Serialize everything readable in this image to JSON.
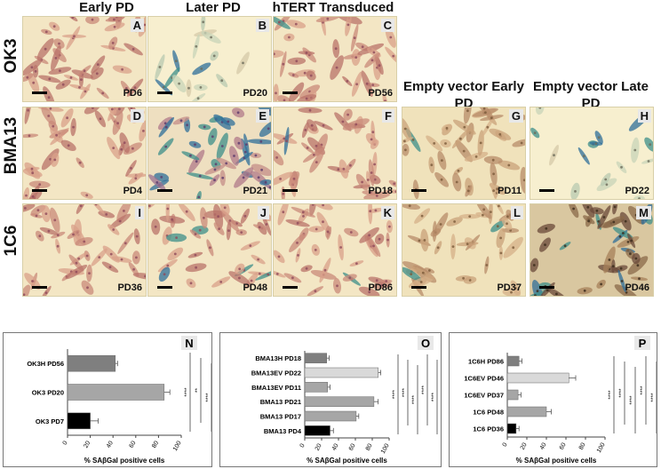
{
  "column_headers": [
    "Early PD",
    "Later PD",
    "hTERT Transduced",
    "Empty vector Early PD",
    "Empty vector Late PD"
  ],
  "row_headers": [
    "OK3",
    "BMA13",
    "1C6"
  ],
  "panels": [
    {
      "letter": "A",
      "pd": "PD6",
      "cells": "pink",
      "blue": 0.05
    },
    {
      "letter": "B",
      "pd": "PD20",
      "cells": "sparse",
      "blue": 0.35
    },
    {
      "letter": "C",
      "pd": "PD56",
      "cells": "pink",
      "blue": 0.05
    },
    {
      "letter": "D",
      "pd": "PD4",
      "cells": "pink",
      "blue": 0.03
    },
    {
      "letter": "E",
      "pd": "PD21",
      "cells": "mixed",
      "blue": 0.45
    },
    {
      "letter": "F",
      "pd": "PD18",
      "cells": "pink",
      "blue": 0.04
    },
    {
      "letter": "G",
      "pd": "PD11",
      "cells": "tan",
      "blue": 0.05
    },
    {
      "letter": "H",
      "pd": "PD22",
      "cells": "sparse",
      "blue": 0.45
    },
    {
      "letter": "I",
      "pd": "PD36",
      "cells": "pink",
      "blue": 0.03
    },
    {
      "letter": "J",
      "pd": "PD48",
      "cells": "pink",
      "blue": 0.06
    },
    {
      "letter": "K",
      "pd": "PD86",
      "cells": "pink",
      "blue": 0.03
    },
    {
      "letter": "L",
      "pd": "PD37",
      "cells": "tan",
      "blue": 0.05
    },
    {
      "letter": "M",
      "pd": "PD46",
      "cells": "dark",
      "blue": 0.4
    }
  ],
  "chart_data": [
    {
      "type": "bar",
      "panel": "N",
      "categories": [
        "OK3H PD56",
        "OK3 PD20",
        "OK3 PD7"
      ],
      "values": [
        42,
        85,
        20
      ],
      "errors": [
        2,
        5,
        7
      ],
      "colors": [
        "#7f7f7f",
        "#a6a6a6",
        "#000000"
      ],
      "xlabel": "% SAβGal positive cells",
      "xticks": [
        0,
        20,
        40,
        60,
        80,
        100
      ],
      "xlim": [
        0,
        100
      ],
      "significance": [
        "****",
        "**",
        "****"
      ]
    },
    {
      "type": "bar",
      "panel": "O",
      "categories": [
        "BMA13H PD18",
        "BMA13EV PD22",
        "BMA13EV PD11",
        "BMA13 PD21",
        "BMA13 PD17",
        "BMA13 PD4"
      ],
      "values": [
        26,
        87,
        27,
        82,
        61,
        30
      ],
      "errors": [
        3,
        3,
        3,
        5,
        3,
        4
      ],
      "colors": [
        "#7f7f7f",
        "#d9d9d9",
        "#a6a6a6",
        "#a6a6a6",
        "#a6a6a6",
        "#000000"
      ],
      "xlabel": "% SAβGal positive cells",
      "xticks": [
        0,
        20,
        40,
        60,
        80,
        100
      ],
      "xlim": [
        0,
        100
      ],
      "significance": [
        "****",
        "****",
        "****",
        "****",
        "****",
        "****",
        "****",
        "****",
        "****"
      ]
    },
    {
      "type": "bar",
      "panel": "P",
      "categories": [
        "1C6H PD86",
        "1C6EV PD46",
        "1C6EV PD37",
        "1C6 PD48",
        "1C6 PD36"
      ],
      "values": [
        12,
        63,
        11,
        40,
        9
      ],
      "errors": [
        3,
        7,
        3,
        5,
        3
      ],
      "colors": [
        "#7f7f7f",
        "#d9d9d9",
        "#a6a6a6",
        "#a6a6a6",
        "#000000"
      ],
      "xlabel": "% SAβGal positive cells",
      "xticks": [
        0,
        20,
        40,
        60,
        80,
        100
      ],
      "xlim": [
        0,
        100
      ],
      "significance": [
        "****",
        "****",
        "****",
        "****",
        "****",
        "****",
        "****"
      ]
    }
  ]
}
